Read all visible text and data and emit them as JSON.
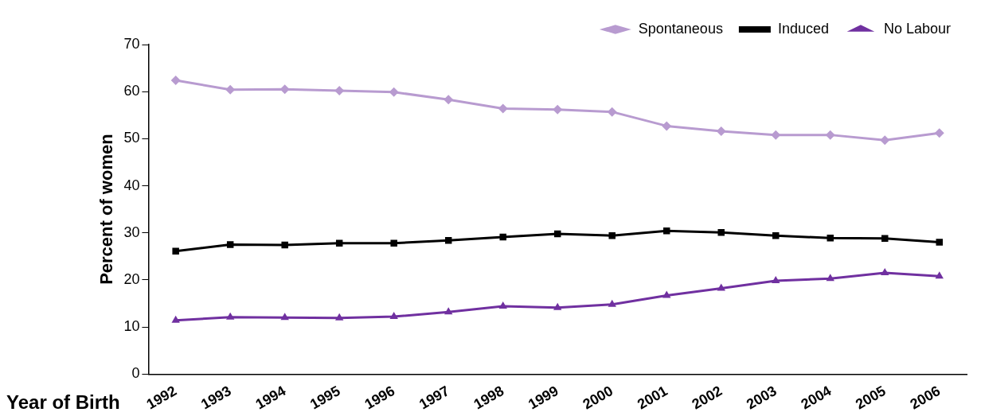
{
  "chart_data": {
    "type": "line",
    "xlabel": "Year of Birth",
    "ylabel": "Percent of women",
    "categories": [
      "1992",
      "1993",
      "1994",
      "1995",
      "1996",
      "1997",
      "1998",
      "1999",
      "2000",
      "2001",
      "2002",
      "2003",
      "2004",
      "2005",
      "2006"
    ],
    "series": [
      {
        "name": "Spontaneous",
        "color": "#b89bd0",
        "marker": "diamond",
        "values": [
          62.4,
          60.4,
          60.5,
          60.2,
          59.9,
          58.3,
          56.4,
          56.2,
          55.7,
          52.7,
          51.6,
          50.8,
          50.8,
          49.7,
          51.2
        ]
      },
      {
        "name": "Induced",
        "color": "#000000",
        "marker": "square",
        "values": [
          26.1,
          27.5,
          27.4,
          27.8,
          27.8,
          28.4,
          29.1,
          29.8,
          29.4,
          30.4,
          30.1,
          29.4,
          28.9,
          28.8,
          28.0
        ]
      },
      {
        "name": "No Labour",
        "color": "#7030a0",
        "marker": "triangle",
        "values": [
          11.4,
          12.1,
          12.0,
          11.9,
          12.2,
          13.2,
          14.4,
          14.1,
          14.8,
          16.7,
          18.2,
          19.8,
          20.3,
          21.5,
          20.8
        ]
      }
    ],
    "ylim": [
      0,
      70
    ],
    "yticks": [
      0,
      10,
      20,
      30,
      40,
      50,
      60,
      70
    ],
    "grid": false,
    "legend": "top right",
    "line_style": "solid"
  }
}
